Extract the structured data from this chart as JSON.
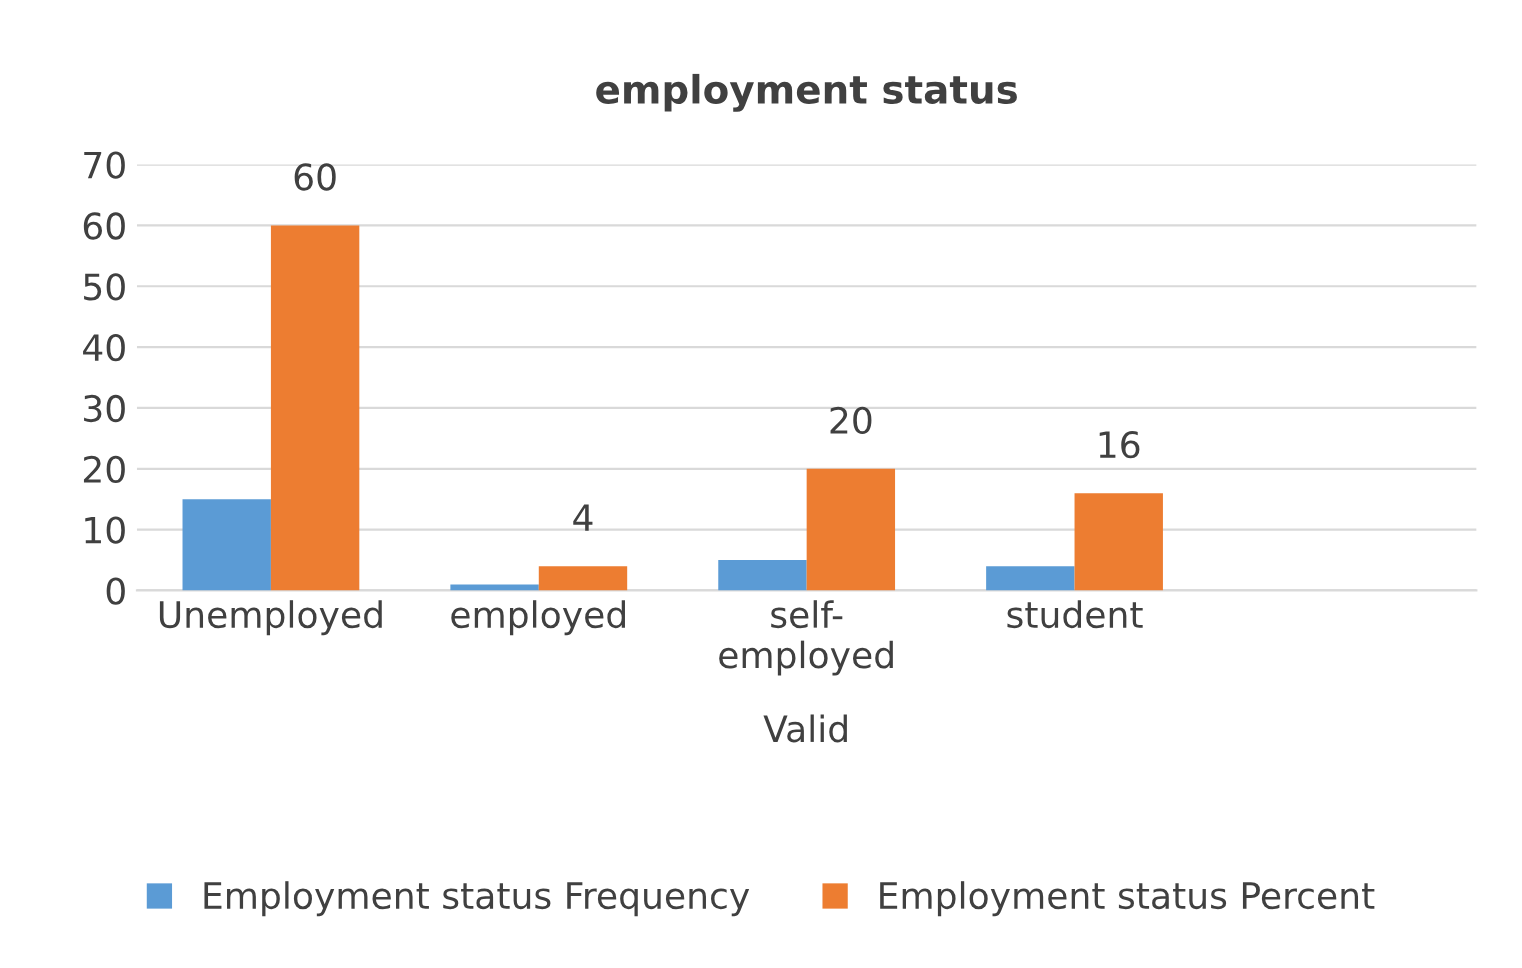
{
  "chart_data": {
    "type": "bar",
    "title": "employment status",
    "xlabel": "Valid",
    "categories": [
      "Unemployed",
      "employed",
      "self-\nemployed",
      "student",
      null
    ],
    "series": [
      {
        "name": "Employment status Frequency",
        "color": "#5b9bd5",
        "values": [
          15,
          1,
          5,
          4,
          null
        ]
      },
      {
        "name": "Employment status Percent",
        "color": "#ed7d31",
        "values": [
          60,
          4,
          20,
          16,
          null
        ],
        "value_labels": [
          "60",
          "4",
          "20",
          "16",
          null
        ]
      }
    ],
    "ylim": [
      0,
      70
    ],
    "yticks": [
      0,
      10,
      20,
      30,
      40,
      50,
      60,
      70
    ],
    "grid": "y",
    "legend": "bottom"
  }
}
